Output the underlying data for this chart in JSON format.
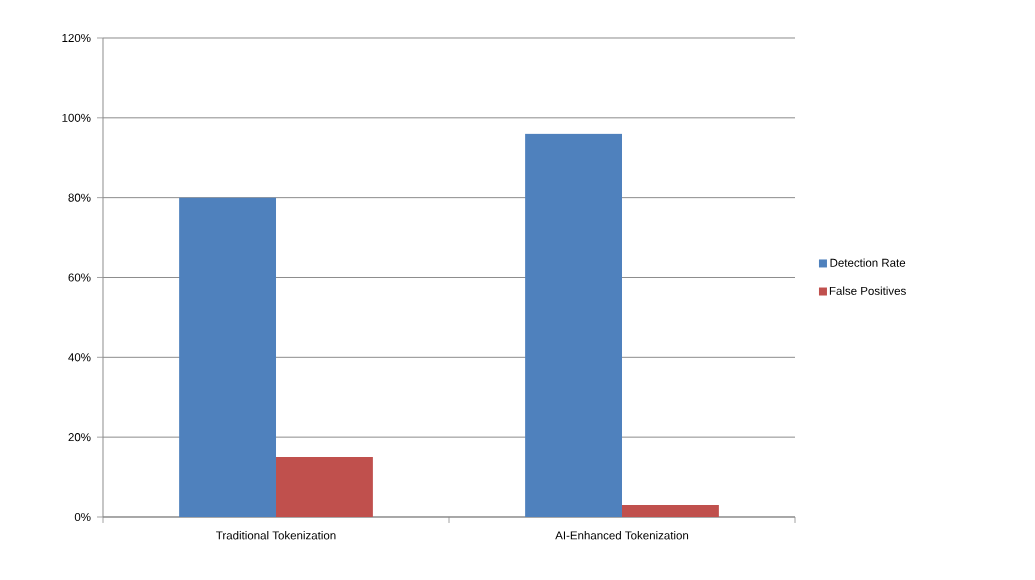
{
  "chart_data": {
    "type": "bar",
    "categories": [
      "Traditional Tokenization",
      "AI-Enhanced Tokenization"
    ],
    "series": [
      {
        "name": "Detection Rate",
        "color": "#4f81bd",
        "values": [
          80,
          96
        ]
      },
      {
        "name": "False Positives",
        "color": "#c0504d",
        "values": [
          15,
          3
        ]
      }
    ],
    "ylim": [
      0,
      120
    ],
    "yticks": [
      {
        "value": 0,
        "label": "0%"
      },
      {
        "value": 20,
        "label": "20%"
      },
      {
        "value": 40,
        "label": "40%"
      },
      {
        "value": 60,
        "label": "60%"
      },
      {
        "value": 80,
        "label": "80%"
      },
      {
        "value": 100,
        "label": "100%"
      },
      {
        "value": 120,
        "label": "120%"
      }
    ],
    "grid": "y",
    "legend": "right"
  }
}
